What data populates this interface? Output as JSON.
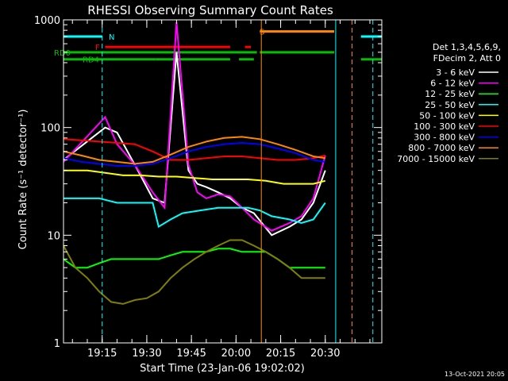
{
  "chart_data": {
    "type": "line",
    "title": "RHESSI Observing Summary Count Rates",
    "xlabel": "Start Time (23-Jan-06 19:02:02)",
    "ylabel": "Count Rate (s⁻¹ detector⁻¹)",
    "yscale": "log",
    "ylim": [
      1,
      1000
    ],
    "xlim_minutes_after_start": [
      0,
      107
    ],
    "x_ticks": [
      "19:15",
      "19:30",
      "19:45",
      "20:00",
      "20:15",
      "20:30"
    ],
    "y_ticks": [
      "1",
      "10",
      "100",
      "1000"
    ],
    "legend_header": [
      "Det 1,3,4,5,6,9,",
      "FDecim 2, Att 0"
    ],
    "legend_position": "right",
    "series": [
      {
        "name": "3 - 6 keV",
        "color": "#ffffff",
        "x": [
          0,
          14,
          18,
          24,
          30,
          34,
          38,
          42,
          45,
          48,
          52,
          56,
          60,
          64,
          70,
          76,
          80,
          84,
          88
        ],
        "y": [
          50,
          100,
          90,
          45,
          22,
          20,
          500,
          40,
          30,
          28,
          25,
          22,
          18,
          16,
          10,
          12,
          14,
          20,
          40
        ]
      },
      {
        "name": "6 - 12 keV",
        "color": "#ff00ff",
        "x": [
          0,
          14,
          18,
          24,
          30,
          34,
          38,
          42,
          45,
          48,
          52,
          56,
          60,
          64,
          70,
          76,
          80,
          84,
          88
        ],
        "y": [
          48,
          125,
          70,
          45,
          25,
          18,
          950,
          45,
          25,
          22,
          24,
          23,
          18,
          14,
          11,
          13,
          15,
          22,
          55
        ]
      },
      {
        "name": "12 - 25 keV",
        "color": "#00ff00",
        "x": [
          0,
          4,
          8,
          12,
          16,
          20,
          24,
          28,
          32,
          36,
          40,
          44,
          48,
          52,
          56,
          60,
          64,
          68,
          72,
          76,
          80,
          84,
          88
        ],
        "y": [
          6,
          5,
          5,
          5.5,
          6,
          6,
          6,
          6,
          6,
          6.5,
          7,
          7,
          7,
          7.5,
          7.5,
          7,
          7,
          7,
          6,
          5,
          5,
          5,
          5
        ]
      },
      {
        "name": "25 - 50 keV",
        "color": "#00ffff",
        "x": [
          0,
          12,
          18,
          24,
          30,
          32,
          36,
          40,
          46,
          52,
          58,
          62,
          66,
          70,
          76,
          80,
          84,
          88
        ],
        "y": [
          22,
          22,
          20,
          20,
          20,
          12,
          14,
          16,
          17,
          18,
          18,
          18,
          17,
          15,
          14,
          13,
          14,
          20
        ]
      },
      {
        "name": "50 - 100 keV",
        "color": "#ffff00",
        "x": [
          0,
          8,
          14,
          20,
          26,
          32,
          38,
          44,
          50,
          56,
          62,
          68,
          74,
          80,
          84,
          88
        ],
        "y": [
          40,
          40,
          38,
          36,
          36,
          35,
          35,
          34,
          33,
          33,
          33,
          32,
          30,
          30,
          30,
          32
        ]
      },
      {
        "name": "100 - 300 keV",
        "color": "#ff0000",
        "x": [
          0,
          6,
          12,
          18,
          24,
          30,
          36,
          42,
          48,
          54,
          60,
          66,
          72,
          78,
          84,
          88
        ],
        "y": [
          78,
          76,
          74,
          72,
          70,
          60,
          50,
          50,
          52,
          54,
          54,
          52,
          50,
          50,
          52,
          55
        ]
      },
      {
        "name": "300 - 800 keV",
        "color": "#0000ff",
        "x": [
          0,
          6,
          12,
          18,
          24,
          30,
          36,
          42,
          48,
          54,
          60,
          66,
          72,
          78,
          84,
          88
        ],
        "y": [
          52,
          48,
          46,
          44,
          44,
          46,
          52,
          60,
          66,
          70,
          72,
          70,
          64,
          58,
          50,
          48
        ]
      },
      {
        "name": "800 - 7000 keV",
        "color": "#ff8800",
        "x": [
          0,
          6,
          12,
          18,
          24,
          30,
          36,
          42,
          48,
          54,
          60,
          66,
          72,
          78,
          84,
          88
        ],
        "y": [
          60,
          55,
          50,
          48,
          46,
          48,
          56,
          66,
          74,
          80,
          82,
          78,
          70,
          62,
          54,
          52
        ]
      },
      {
        "name": "7000 - 15000 keV",
        "color": "#808000",
        "x": [
          0,
          4,
          8,
          12,
          16,
          20,
          24,
          28,
          32,
          36,
          40,
          44,
          48,
          52,
          56,
          60,
          64,
          68,
          72,
          76,
          80,
          84,
          88
        ],
        "y": [
          8,
          5,
          4,
          3,
          2.4,
          2.3,
          2.5,
          2.6,
          3,
          4,
          5,
          6,
          7,
          8,
          9,
          9,
          8,
          7,
          6,
          5,
          4,
          4,
          4
        ]
      }
    ],
    "annotations": [
      {
        "text": "N",
        "color": "#00ffff"
      },
      {
        "text": "F",
        "color": "#ff0000"
      },
      {
        "text": "S",
        "color": "#ff8800"
      },
      {
        "text": "RD0",
        "color": "#00c000"
      },
      {
        "text": "RD4",
        "color": "#00c000"
      }
    ],
    "flag_bars": [
      {
        "label": "N",
        "color": "#00ffff",
        "y_value": 700,
        "segments": [
          [
            0,
            13
          ],
          [
            100,
            107
          ]
        ]
      },
      {
        "label": "F",
        "color": "#ff0000",
        "y_value": 560,
        "segments": [
          [
            14,
            56
          ],
          [
            61,
            63
          ]
        ]
      },
      {
        "label": "S",
        "color": "#ff8800",
        "y_value": 780,
        "segments": [
          [
            66,
            91
          ]
        ]
      },
      {
        "label": "RD0",
        "color": "#00c000",
        "y_value": 500,
        "segments": [
          [
            0,
            65
          ],
          [
            66,
            91
          ]
        ]
      },
      {
        "label": "RD4",
        "color": "#00c000",
        "y_value": 430,
        "segments": [
          [
            0,
            31
          ],
          [
            31,
            56
          ],
          [
            59,
            64
          ],
          [
            100,
            107
          ]
        ]
      }
    ],
    "vertical_markers": [
      {
        "x": 13.0,
        "color": "#00ffff",
        "style": "dashed"
      },
      {
        "x": 66.5,
        "color": "#ff8800",
        "style": "solid"
      },
      {
        "x": 91.5,
        "color": "#00ffff",
        "style": "solid"
      },
      {
        "x": 97.0,
        "color": "#ff8800",
        "style": "dashed"
      },
      {
        "x": 104.0,
        "color": "#00ffff",
        "style": "dashed"
      }
    ],
    "footer_date": "13-Oct-2021 20:05"
  }
}
